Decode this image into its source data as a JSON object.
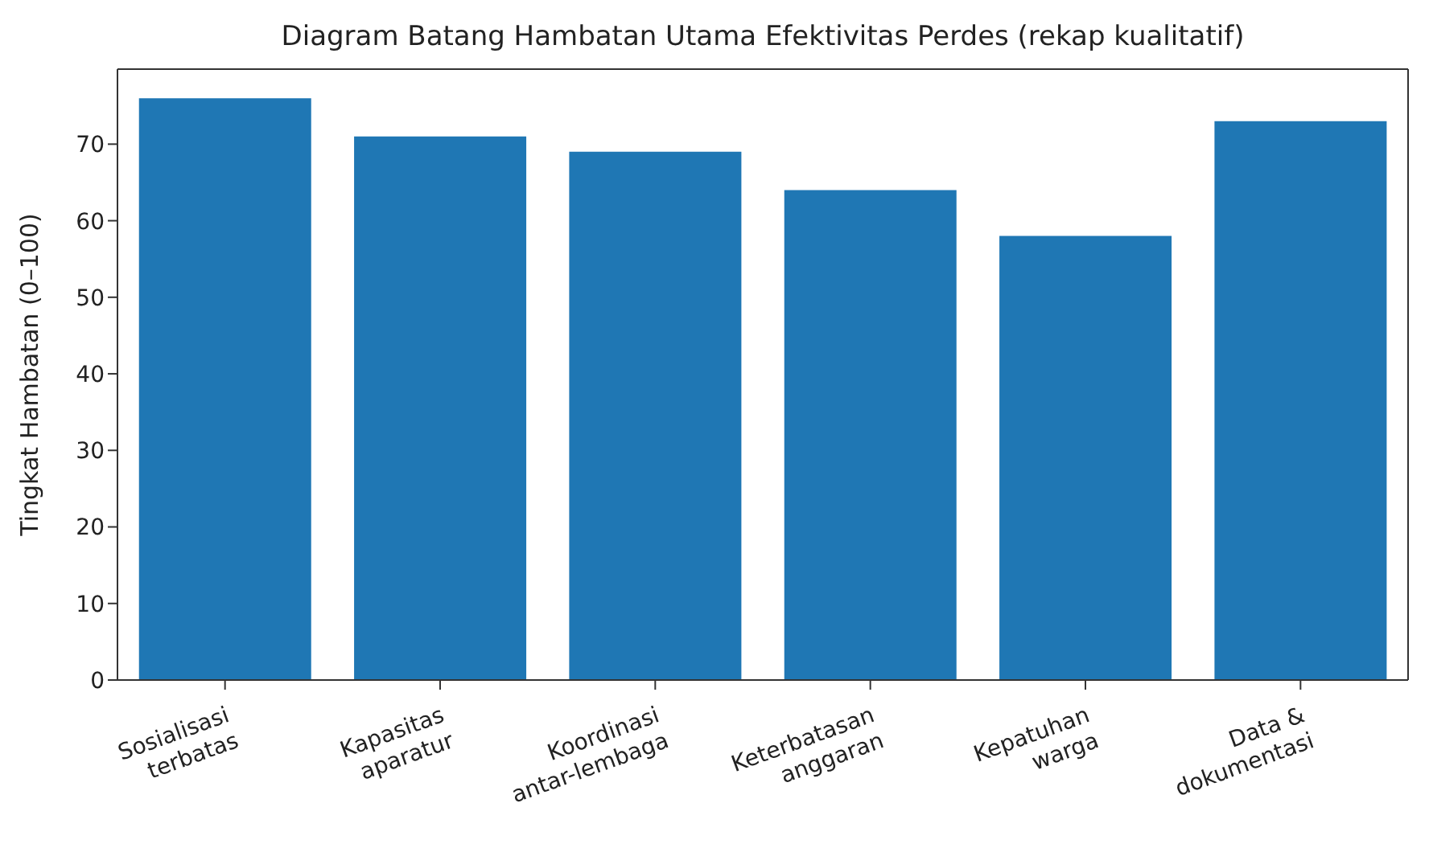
{
  "chart_data": {
    "type": "bar",
    "title": "Diagram Batang Hambatan Utama Efektivitas Perdes (rekap kualitatif)",
    "ylabel": "Tingkat Hambatan (0–100)",
    "categories": [
      "Sosialisasi\nterbatas",
      "Kapasitas\naparatur",
      "Koordinasi\nantar-lembaga",
      "Keterbatasan\nanggaran",
      "Kepatuhan\nwarga",
      "Data &\ndokumentasi"
    ],
    "values": [
      76,
      71,
      69,
      64,
      58,
      73
    ],
    "color": "#1f77b4",
    "ylim": [
      0,
      79.8
    ],
    "yticks": [
      0,
      10,
      20,
      30,
      40,
      50,
      60,
      70
    ],
    "grid": false
  }
}
